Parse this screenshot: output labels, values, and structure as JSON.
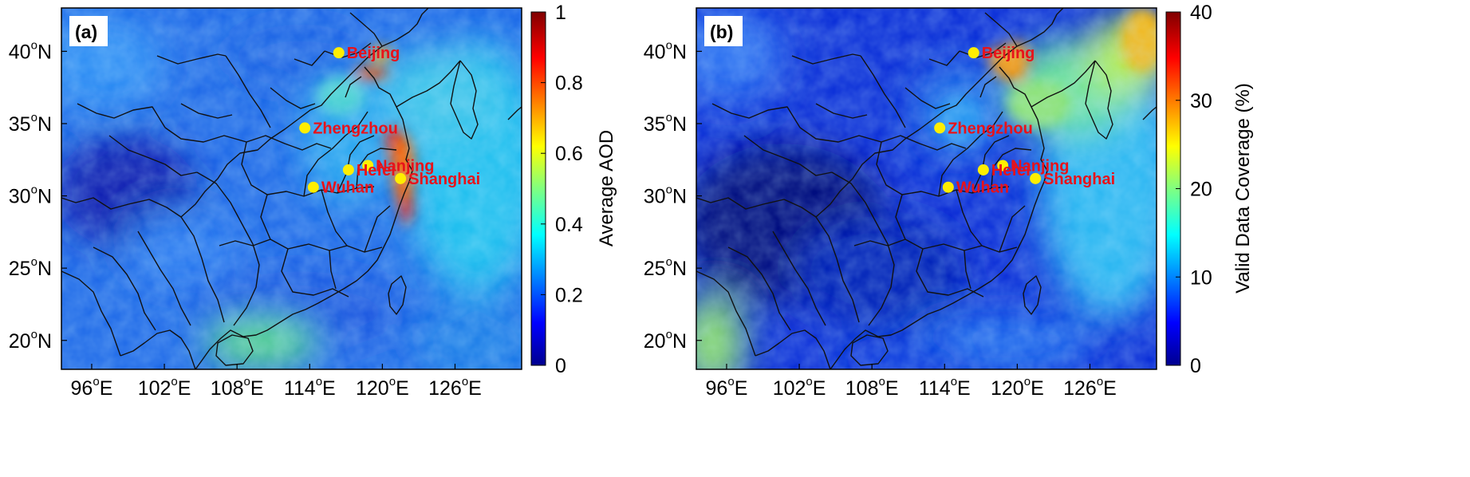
{
  "colors": {
    "colormap": [
      "#00008f",
      "#0000ff",
      "#0080ff",
      "#00ffff",
      "#80ff80",
      "#ffff00",
      "#ff8000",
      "#ff0000",
      "#800000"
    ],
    "city_marker": "#ffee00",
    "city_label": "#e8121a",
    "panel_bg": "#1b55d8"
  },
  "x_axis": {
    "ticks": [
      96,
      102,
      108,
      114,
      120,
      126
    ],
    "unit_sup": "o",
    "suffix": "E"
  },
  "y_axis": {
    "ticks": [
      40,
      35,
      30,
      25,
      20
    ],
    "unit_sup": "o",
    "suffix": "N"
  },
  "cities": [
    {
      "name": "Beijing",
      "lon": 116.4,
      "lat": 39.9
    },
    {
      "name": "Zhengzhou",
      "lon": 113.6,
      "lat": 34.7
    },
    {
      "name": "Nanjing",
      "lon": 118.8,
      "lat": 32.1
    },
    {
      "name": "Hefei",
      "lon": 117.2,
      "lat": 31.8
    },
    {
      "name": "Shanghai",
      "lon": 121.5,
      "lat": 31.2
    },
    {
      "name": "Wuhan",
      "lon": 114.3,
      "lat": 30.6
    }
  ],
  "panels": [
    {
      "label": "(a)",
      "colorbar_title": "Average AOD",
      "colorbar_ticks": [
        "0",
        "0.2",
        "0.4",
        "0.6",
        "0.8",
        "1"
      ]
    },
    {
      "label": "(b)",
      "colorbar_title": "Valid Data Coverage (%)",
      "colorbar_ticks": [
        "0",
        "10",
        "20",
        "30",
        "40"
      ]
    }
  ]
}
